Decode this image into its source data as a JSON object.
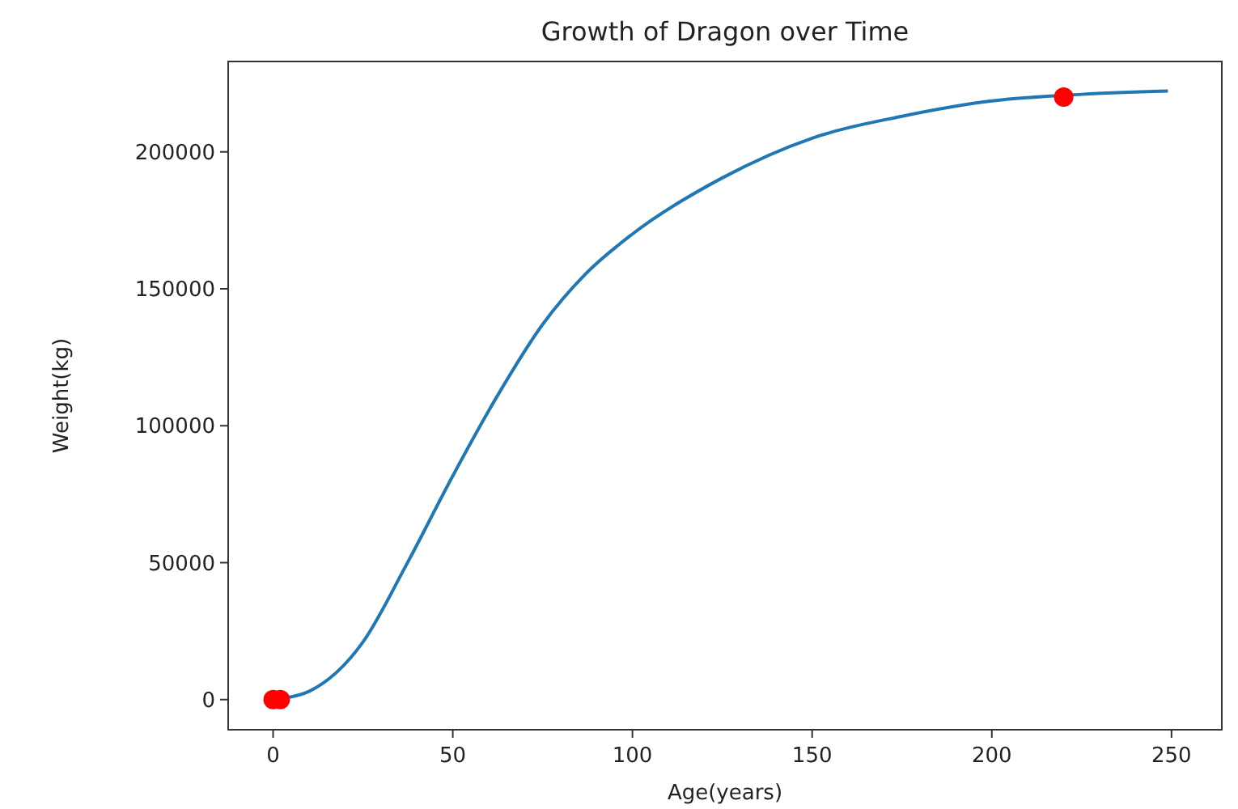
{
  "chart_data": {
    "type": "line",
    "title": "Growth of Dragon over Time",
    "xlabel": "Age(years)",
    "ylabel": "Weight(kg)",
    "xlim": [
      -12.5,
      264
    ],
    "ylim": [
      -11000,
      233000
    ],
    "xticks": [
      0,
      50,
      100,
      150,
      200,
      250
    ],
    "yticks": [
      0,
      50000,
      100000,
      150000,
      200000
    ],
    "grid": false,
    "series": [
      {
        "color": "#1f77b4",
        "marker": "none",
        "line_style": "solid",
        "x": [
          0,
          3,
          10,
          25,
          37,
          50,
          62,
          75,
          87,
          100,
          125,
          150,
          175,
          200,
          225,
          249
        ],
        "values": [
          0,
          500,
          3000,
          21000,
          49000,
          81700,
          110000,
          137000,
          155500,
          170000,
          190500,
          205000,
          213000,
          218600,
          221000,
          222200
        ]
      },
      {
        "type": "scatter",
        "color": "#ff0000",
        "marker": "circle",
        "x": [
          0,
          2,
          220
        ],
        "values": [
          0,
          0,
          220000
        ]
      }
    ]
  }
}
